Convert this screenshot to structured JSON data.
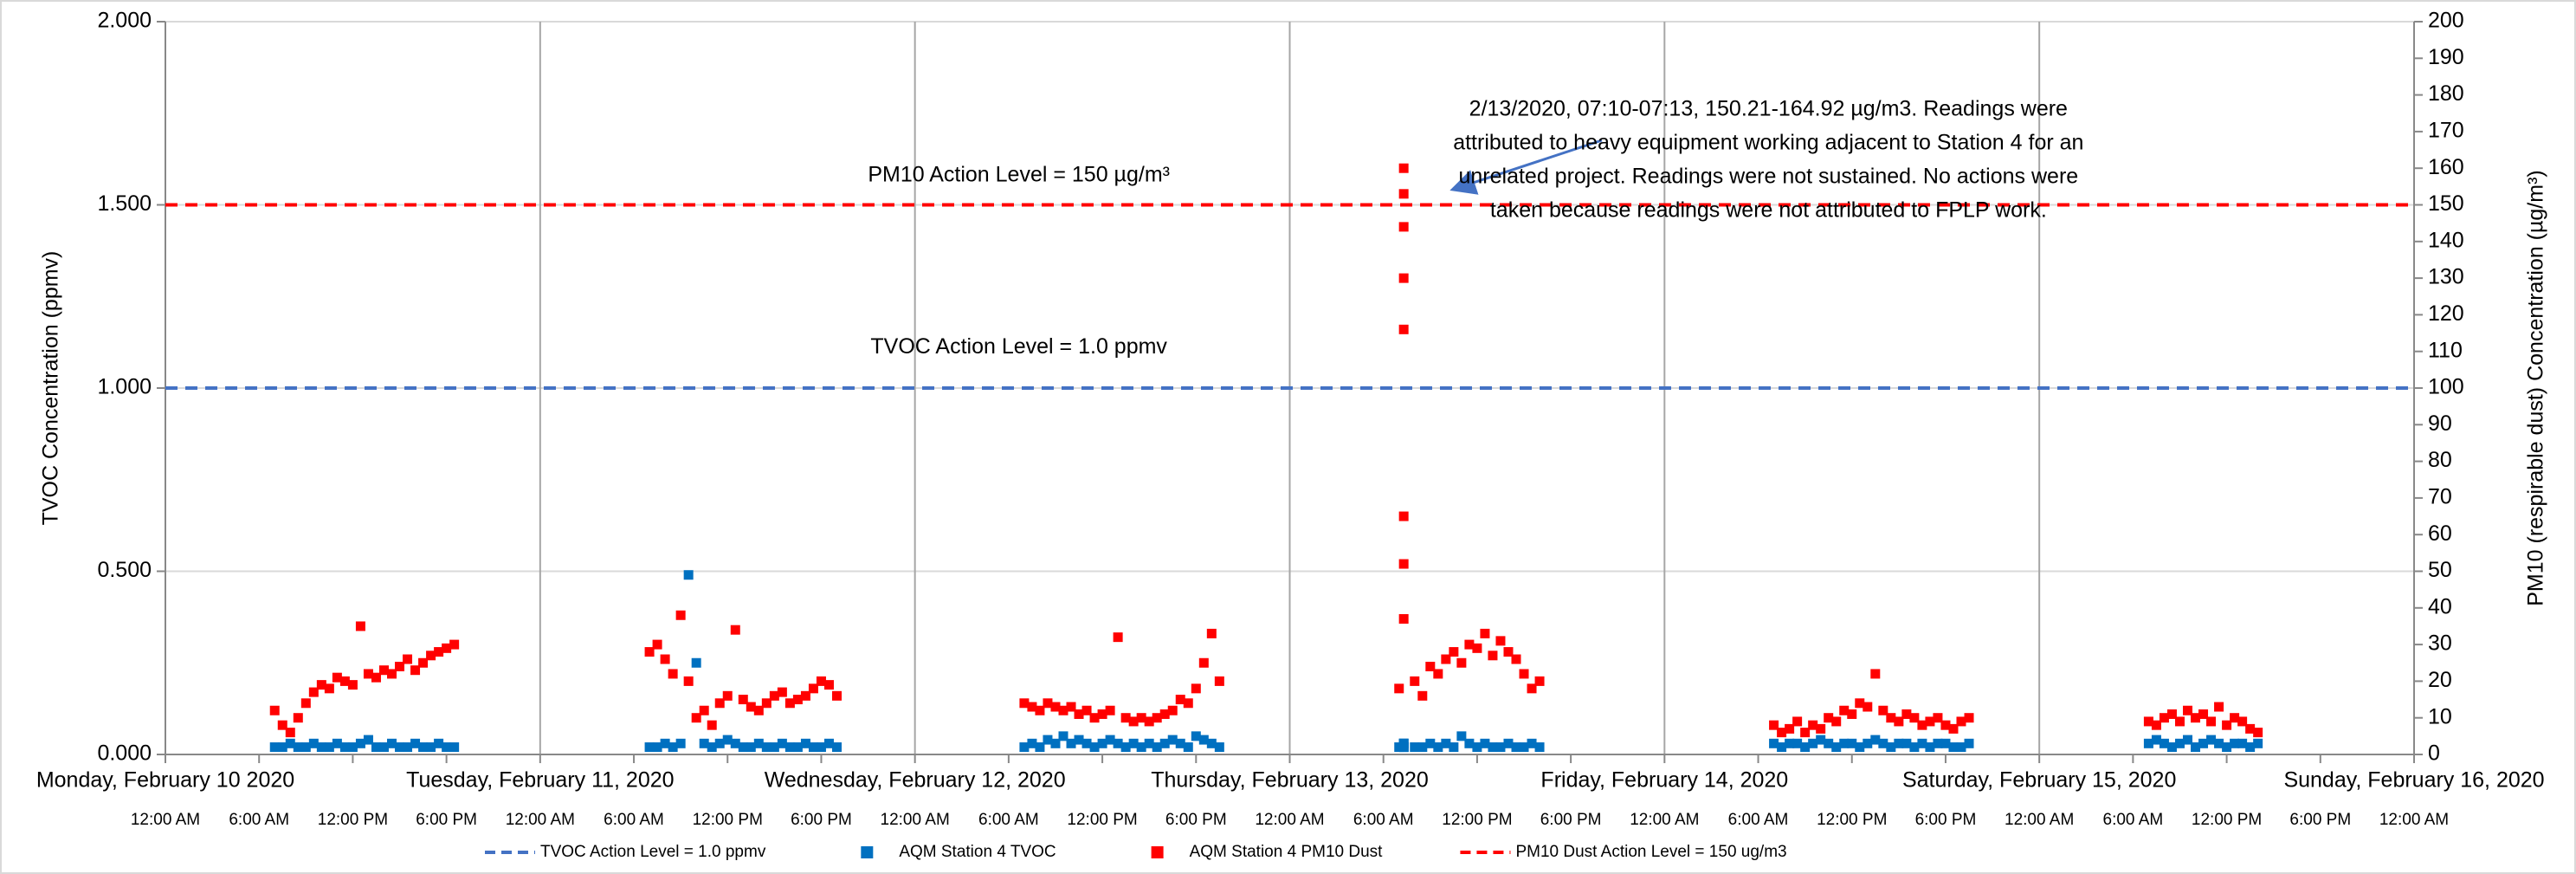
{
  "chart_data": {
    "type": "scatter",
    "ylabel": "TVOC Concentration (ppmv)",
    "y2label": "PM10 (respirable dust) Concentration (µg/m³)",
    "xlim": [
      0,
      144
    ],
    "ylim": [
      0,
      2
    ],
    "yticks": [
      {
        "value": 0,
        "label": "0.000"
      },
      {
        "value": 0.5,
        "label": "0.500"
      },
      {
        "value": 1,
        "label": "1.000"
      },
      {
        "value": 1.5,
        "label": "1.500"
      },
      {
        "value": 2,
        "label": "2.000"
      }
    ],
    "y2lim": [
      0,
      200
    ],
    "y2ticks": [
      0,
      10,
      20,
      30,
      40,
      50,
      60,
      70,
      80,
      90,
      100,
      110,
      120,
      130,
      140,
      150,
      160,
      170,
      180,
      190,
      200
    ],
    "grid": true,
    "x_day_ticks": [
      {
        "value": 0,
        "label": "Monday, February 10 2020"
      },
      {
        "value": 24,
        "label": "Tuesday, February 11, 2020"
      },
      {
        "value": 48,
        "label": "Wednesday, February 12, 2020"
      },
      {
        "value": 72,
        "label": "Thursday, February 13, 2020"
      },
      {
        "value": 96,
        "label": "Friday, February 14, 2020"
      },
      {
        "value": 120,
        "label": "Saturday, February 15, 2020"
      },
      {
        "value": 144,
        "label": "Sunday, February 16, 2020"
      }
    ],
    "xticks": [
      {
        "value": 0,
        "label": "12:00 AM"
      },
      {
        "value": 6,
        "label": "6:00 AM"
      },
      {
        "value": 12,
        "label": "12:00 PM"
      },
      {
        "value": 18,
        "label": "6:00 PM"
      },
      {
        "value": 24,
        "label": "12:00 AM"
      },
      {
        "value": 30,
        "label": "6:00 AM"
      },
      {
        "value": 36,
        "label": "12:00 PM"
      },
      {
        "value": 42,
        "label": "6:00 PM"
      },
      {
        "value": 48,
        "label": "12:00 AM"
      },
      {
        "value": 54,
        "label": "6:00 AM"
      },
      {
        "value": 60,
        "label": "12:00 PM"
      },
      {
        "value": 66,
        "label": "6:00 PM"
      },
      {
        "value": 72,
        "label": "12:00 AM"
      },
      {
        "value": 78,
        "label": "6:00 AM"
      },
      {
        "value": 84,
        "label": "12:00 PM"
      },
      {
        "value": 90,
        "label": "6:00 PM"
      },
      {
        "value": 96,
        "label": "12:00 AM"
      },
      {
        "value": 102,
        "label": "6:00 AM"
      },
      {
        "value": 108,
        "label": "12:00 PM"
      },
      {
        "value": 114,
        "label": "6:00 PM"
      },
      {
        "value": 120,
        "label": "12:00 AM"
      },
      {
        "value": 126,
        "label": "6:00 AM"
      },
      {
        "value": 132,
        "label": "12:00 PM"
      },
      {
        "value": 138,
        "label": "6:00 PM"
      },
      {
        "value": 144,
        "label": "12:00 AM"
      }
    ],
    "annotations": [
      {
        "text": "PM10 Action Level = 150 µg/m³",
        "x": 48,
        "y": 1.58
      },
      {
        "text": "TVOC Action Level = 1.0 ppmv",
        "x": 48,
        "y": 1.11
      }
    ],
    "note": {
      "x": 96,
      "y": 1.74,
      "lines": [
        "2/13/2020, 07:10-07:13, 150.21-164.92 µg/m3. Readings were",
        "attributed to heavy equipment working adjacent to Station 4 for an",
        "unrelated project. Readings were not sustained. No actions were",
        "taken because readings were not attributed to FPLP work."
      ]
    },
    "x": [
      7,
      7.5,
      8,
      8.5,
      9,
      9.5,
      10,
      10.5,
      11,
      11.5,
      12,
      12.5,
      13,
      13.5,
      14,
      14.5,
      15,
      15.5,
      16,
      16.5,
      17,
      17.5,
      18,
      18.5,
      31,
      31.5,
      32,
      32.5,
      33,
      33.5,
      34,
      34.5,
      35,
      35.5,
      36,
      36.5,
      37,
      37.5,
      38,
      38.5,
      39,
      39.5,
      40,
      40.5,
      41,
      41.5,
      42,
      42.5,
      43,
      55,
      55.5,
      56,
      56.5,
      57,
      57.5,
      58,
      58.5,
      59,
      59.5,
      60,
      60.5,
      61,
      61.5,
      62,
      62.5,
      63,
      63.5,
      64,
      64.5,
      65,
      65.5,
      66,
      66.5,
      67,
      67.5,
      79,
      79.3,
      79.3,
      79.3,
      79.3,
      79.3,
      79.3,
      79.3,
      79.3,
      80,
      80.5,
      81,
      81.5,
      82,
      82.5,
      83,
      83.5,
      84,
      84.5,
      85,
      85.5,
      86,
      86.5,
      87,
      87.5,
      88,
      103,
      103.5,
      104,
      104.5,
      105,
      105.5,
      106,
      106.5,
      107,
      107.5,
      108,
      108.5,
      109,
      109.5,
      110,
      110.5,
      111,
      111.5,
      112,
      112.5,
      113,
      113.5,
      114,
      114.5,
      115,
      115.5,
      127,
      127.5,
      128,
      128.5,
      129,
      129.5,
      130,
      130.5,
      131,
      131.5,
      132,
      132.5,
      133,
      133.5,
      134
    ],
    "series": [
      {
        "name": "TVOC Action Level = 1.0 ppmv",
        "style": "dashed",
        "color": "#4472c4",
        "x": [
          0,
          144
        ],
        "values": [
          1,
          1
        ]
      },
      {
        "name": "AQM Station 4 TVOC",
        "style": "marker",
        "color": "#0070c0",
        "values": [
          0.02,
          0.02,
          0.03,
          0.02,
          0.02,
          0.03,
          0.02,
          0.02,
          0.03,
          0.02,
          0.02,
          0.03,
          0.04,
          0.02,
          0.02,
          0.03,
          0.02,
          0.02,
          0.03,
          0.02,
          0.02,
          0.03,
          0.02,
          0.02,
          0.02,
          0.02,
          0.03,
          0.02,
          0.03,
          0.49,
          0.25,
          0.03,
          0.02,
          0.03,
          0.04,
          0.03,
          0.02,
          0.02,
          0.03,
          0.02,
          0.02,
          0.03,
          0.02,
          0.02,
          0.03,
          0.02,
          0.02,
          0.03,
          0.02,
          0.02,
          0.03,
          0.02,
          0.04,
          0.03,
          0.05,
          0.03,
          0.04,
          0.03,
          0.02,
          0.03,
          0.04,
          0.03,
          0.02,
          0.03,
          0.02,
          0.03,
          0.02,
          0.03,
          0.04,
          0.03,
          0.02,
          0.05,
          0.04,
          0.03,
          0.02,
          0.02,
          0.02,
          0.02,
          0.03,
          0.02,
          0.03,
          0.02,
          0.02,
          0.03,
          0.02,
          0.02,
          0.03,
          0.02,
          0.03,
          0.02,
          0.05,
          0.03,
          0.02,
          0.03,
          0.02,
          0.02,
          0.03,
          0.02,
          0.02,
          0.03,
          0.02,
          0.03,
          0.02,
          0.03,
          0.03,
          0.02,
          0.03,
          0.04,
          0.03,
          0.02,
          0.03,
          0.03,
          0.02,
          0.03,
          0.04,
          0.03,
          0.02,
          0.03,
          0.03,
          0.02,
          0.03,
          0.02,
          0.03,
          0.03,
          0.02,
          0.02,
          0.03,
          0.03,
          0.04,
          0.03,
          0.02,
          0.03,
          0.04,
          0.02,
          0.03,
          0.04,
          0.03,
          0.02,
          0.03,
          0.03,
          0.02,
          0.03
        ]
      },
      {
        "name": "AQM Station 4 PM10 Dust",
        "style": "marker",
        "color": "#ff0000",
        "axis": "y2",
        "values": [
          12,
          8,
          6,
          10,
          14,
          17,
          19,
          18,
          21,
          20,
          19,
          35,
          22,
          21,
          23,
          22,
          24,
          26,
          23,
          25,
          27,
          28,
          29,
          30,
          28,
          30,
          26,
          22,
          38,
          20,
          10,
          12,
          8,
          14,
          16,
          34,
          15,
          13,
          12,
          14,
          16,
          17,
          14,
          15,
          16,
          18,
          20,
          19,
          16,
          14,
          13,
          12,
          14,
          13,
          12,
          13,
          11,
          12,
          10,
          11,
          12,
          32,
          10,
          9,
          10,
          9,
          10,
          11,
          12,
          15,
          14,
          18,
          25,
          33,
          20,
          18,
          160,
          153,
          144,
          130,
          116,
          65,
          52,
          37,
          20,
          16,
          24,
          22,
          26,
          28,
          25,
          30,
          29,
          33,
          27,
          31,
          28,
          26,
          22,
          18,
          20,
          8,
          6,
          7,
          9,
          6,
          8,
          7,
          10,
          9,
          12,
          11,
          14,
          13,
          22,
          12,
          10,
          9,
          11,
          10,
          8,
          9,
          10,
          8,
          7,
          9,
          10,
          9,
          8,
          10,
          11,
          9,
          12,
          10,
          11,
          9,
          13,
          8,
          10,
          9,
          7,
          6
        ]
      },
      {
        "name": "PM10 Dust Action Level = 150 ug/m3",
        "style": "dashed",
        "color": "#ff0000",
        "axis": "y2",
        "x": [
          0,
          144
        ],
        "values": [
          150,
          150
        ]
      }
    ]
  }
}
